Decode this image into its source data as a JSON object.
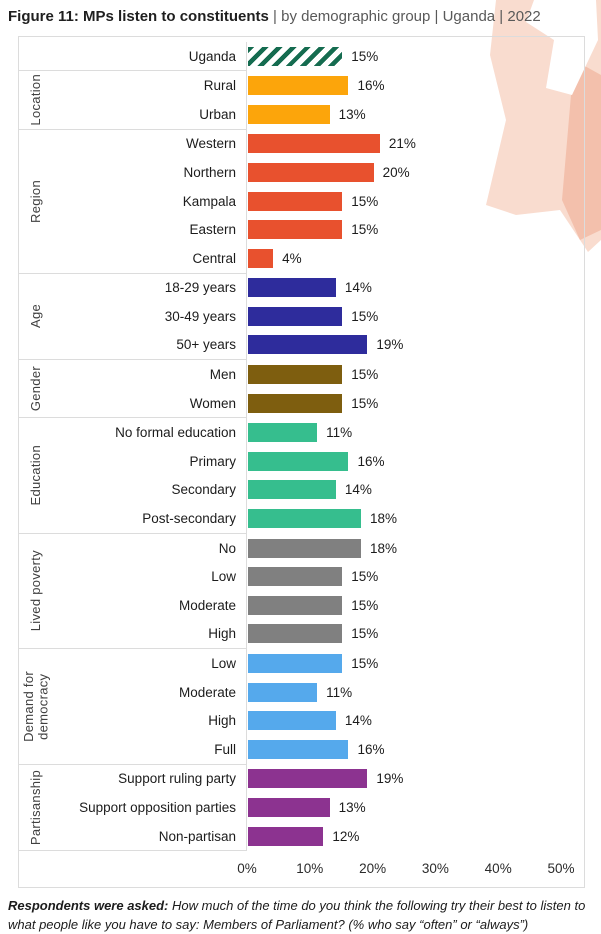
{
  "title": {
    "bold": "Figure 11: MPs listen to constituents",
    "rest": " | by demographic group | Uganda | 2022"
  },
  "footnote": {
    "bold": "Respondents were asked:",
    "rest": " How much of the time do you think the following try their best to listen to what people like you have to say: Members of Parliament? (% who say “often” or “always”)"
  },
  "axis": {
    "tick_labels": [
      "0%",
      "10%",
      "20%",
      "30%",
      "40%",
      "50%"
    ],
    "tick_values": [
      0,
      10,
      20,
      30,
      40,
      50
    ]
  },
  "colors": {
    "frame_line": "#dcdcdc",
    "hatch_green": "#156c50",
    "decoration_peach": "#f9dccf",
    "decoration_salmon": "#f3c0ac"
  },
  "chart_data": {
    "type": "bar",
    "orientation": "horizontal",
    "title": "MPs listen to constituents | by demographic group | Uganda | 2022",
    "xlabel": "",
    "ylabel": "",
    "xlim": [
      0,
      50
    ],
    "grid": false,
    "legend": false,
    "value_suffix": "%",
    "groups": [
      {
        "label": "",
        "color": "#156c50",
        "pattern": "diagonal-hatch",
        "items": [
          {
            "category": "Uganda",
            "value": 15
          }
        ]
      },
      {
        "label": "Location",
        "color": "#fca50b",
        "items": [
          {
            "category": "Rural",
            "value": 16
          },
          {
            "category": "Urban",
            "value": 13
          }
        ]
      },
      {
        "label": "Region",
        "color": "#e8512e",
        "items": [
          {
            "category": "Western",
            "value": 21
          },
          {
            "category": "Northern",
            "value": 20
          },
          {
            "category": "Kampala",
            "value": 15
          },
          {
            "category": "Eastern",
            "value": 15
          },
          {
            "category": "Central",
            "value": 4
          }
        ]
      },
      {
        "label": "Age",
        "color": "#2e2c9c",
        "items": [
          {
            "category": "18-29 years",
            "value": 14
          },
          {
            "category": "30-49 years",
            "value": 15
          },
          {
            "category": "50+ years",
            "value": 19
          }
        ]
      },
      {
        "label": "Gender",
        "color": "#7e5e0f",
        "items": [
          {
            "category": "Men",
            "value": 15
          },
          {
            "category": "Women",
            "value": 15
          }
        ]
      },
      {
        "label": "Education",
        "color": "#36be8e",
        "items": [
          {
            "category": "No formal education",
            "value": 11
          },
          {
            "category": "Primary",
            "value": 16
          },
          {
            "category": "Secondary",
            "value": 14
          },
          {
            "category": "Post-secondary",
            "value": 18
          }
        ]
      },
      {
        "label": "Lived poverty",
        "color": "#808080",
        "items": [
          {
            "category": "No",
            "value": 18
          },
          {
            "category": "Low",
            "value": 15
          },
          {
            "category": "Moderate",
            "value": 15
          },
          {
            "category": "High",
            "value": 15
          }
        ]
      },
      {
        "label": "Demand for\ndemocracy",
        "color": "#55a9ec",
        "items": [
          {
            "category": "Low",
            "value": 15
          },
          {
            "category": "Moderate",
            "value": 11
          },
          {
            "category": "High",
            "value": 14
          },
          {
            "category": "Full",
            "value": 16
          }
        ]
      },
      {
        "label": "Partisanship",
        "color": "#8c3390",
        "items": [
          {
            "category": "Support ruling party",
            "value": 19
          },
          {
            "category": "Support opposition parties",
            "value": 13
          },
          {
            "category": "Non-partisan",
            "value": 12
          }
        ]
      }
    ]
  }
}
